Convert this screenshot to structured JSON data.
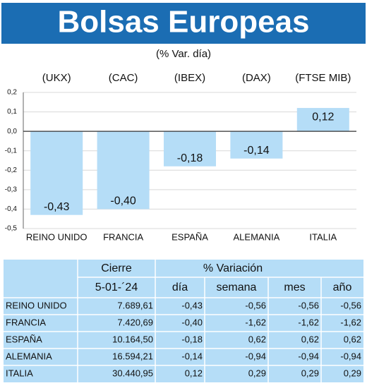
{
  "chart_data": {
    "type": "bar",
    "title": "Bolsas Europeas",
    "subtitle": "(% Var. día)",
    "index_labels": [
      "(UKX)",
      "(CAC)",
      "(IBEX)",
      "(DAX)",
      "(FTSE MIB)"
    ],
    "categories": [
      "REINO UNIDO",
      "FRANCIA",
      "ESPAÑA",
      "ALEMANIA",
      "ITALIA"
    ],
    "values": [
      -0.43,
      -0.4,
      -0.18,
      -0.14,
      0.12
    ],
    "value_labels": [
      "-0,43",
      "-0,40",
      "-0,18",
      "-0,14",
      "0,12"
    ],
    "color": "#b5ddf7",
    "ylim": [
      -0.5,
      0.2
    ],
    "yticks": [
      {
        "value": 0.2,
        "label": "0,2"
      },
      {
        "value": 0.1,
        "label": "0,1"
      },
      {
        "value": 0,
        "label": "0,0"
      },
      {
        "value": -0.1,
        "label": "-0,1"
      },
      {
        "value": -0.2,
        "label": "-0,2"
      },
      {
        "value": -0.3,
        "label": "-0,3"
      },
      {
        "value": -0.4,
        "label": "-0,4"
      },
      {
        "value": -0.5,
        "label": "-0,5"
      }
    ],
    "grid": true
  },
  "table": {
    "header": [
      "Cierre",
      "% Variación"
    ],
    "subheader": [
      "5-01-´24",
      "día",
      "semana",
      "mes",
      "año"
    ],
    "rows": [
      [
        "REINO UNIDO",
        "7.689,61",
        "-0,43",
        "-0,56",
        "-0,56",
        "-0,56"
      ],
      [
        "FRANCIA",
        "7.420,69",
        "-0,40",
        "-1,62",
        "-1,62",
        "-1,62"
      ],
      [
        "ESPAÑA",
        "10.164,50",
        "-0,18",
        "0,62",
        "0,62",
        "0,62"
      ],
      [
        "ALEMANIA",
        "16.594,21",
        "-0,14",
        "-0,94",
        "-0,94",
        "-0,94"
      ],
      [
        "ITALIA",
        "30.440,95",
        "0,12",
        "0,29",
        "0,29",
        "0,29"
      ]
    ]
  }
}
